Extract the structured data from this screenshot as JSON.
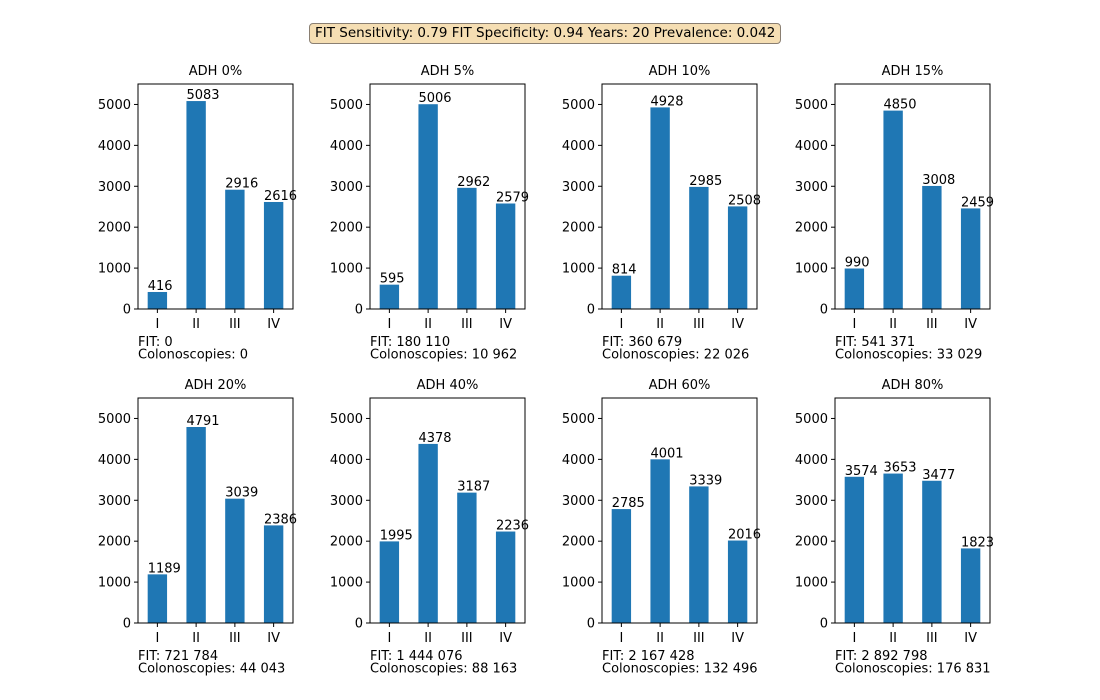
{
  "header": {
    "summary": "FIT Sensitivity: 0.79 FIT Specificity: 0.94 Years: 20 Prevalence: 0.042"
  },
  "colors": {
    "bar": "#1f77b4",
    "axis": "#000000",
    "summary_box_fill": "#f5deb3",
    "summary_box_border": "#8a7f72"
  },
  "chart_data": [
    {
      "type": "bar",
      "title": "ADH 0%",
      "categories": [
        "I",
        "II",
        "III",
        "IV"
      ],
      "values": [
        416,
        5083,
        2916,
        2616
      ],
      "ylim": [
        0,
        5500
      ],
      "yticks": [
        0,
        1000,
        2000,
        3000,
        4000,
        5000
      ],
      "footer_lines": [
        "FIT: 0",
        "Colonoscopies: 0"
      ]
    },
    {
      "type": "bar",
      "title": "ADH 5%",
      "categories": [
        "I",
        "II",
        "III",
        "IV"
      ],
      "values": [
        595,
        5006,
        2962,
        2579
      ],
      "ylim": [
        0,
        5500
      ],
      "yticks": [
        0,
        1000,
        2000,
        3000,
        4000,
        5000
      ],
      "footer_lines": [
        "FIT: 180 110",
        "Colonoscopies: 10 962"
      ]
    },
    {
      "type": "bar",
      "title": "ADH 10%",
      "categories": [
        "I",
        "II",
        "III",
        "IV"
      ],
      "values": [
        814,
        4928,
        2985,
        2508
      ],
      "ylim": [
        0,
        5500
      ],
      "yticks": [
        0,
        1000,
        2000,
        3000,
        4000,
        5000
      ],
      "footer_lines": [
        "FIT: 360 679",
        "Colonoscopies: 22 026"
      ]
    },
    {
      "type": "bar",
      "title": "ADH 15%",
      "categories": [
        "I",
        "II",
        "III",
        "IV"
      ],
      "values": [
        990,
        4850,
        3008,
        2459
      ],
      "ylim": [
        0,
        5500
      ],
      "yticks": [
        0,
        1000,
        2000,
        3000,
        4000,
        5000
      ],
      "footer_lines": [
        "FIT: 541 371",
        "Colonoscopies: 33 029"
      ]
    },
    {
      "type": "bar",
      "title": "ADH 20%",
      "categories": [
        "I",
        "II",
        "III",
        "IV"
      ],
      "values": [
        1189,
        4791,
        3039,
        2386
      ],
      "ylim": [
        0,
        5500
      ],
      "yticks": [
        0,
        1000,
        2000,
        3000,
        4000,
        5000
      ],
      "footer_lines": [
        "FIT: 721 784",
        "Colonoscopies: 44 043"
      ]
    },
    {
      "type": "bar",
      "title": "ADH 40%",
      "categories": [
        "I",
        "II",
        "III",
        "IV"
      ],
      "values": [
        1995,
        4378,
        3187,
        2236
      ],
      "ylim": [
        0,
        5500
      ],
      "yticks": [
        0,
        1000,
        2000,
        3000,
        4000,
        5000
      ],
      "footer_lines": [
        "FIT: 1 444 076",
        "Colonoscopies: 88 163"
      ]
    },
    {
      "type": "bar",
      "title": "ADH 60%",
      "categories": [
        "I",
        "II",
        "III",
        "IV"
      ],
      "values": [
        2785,
        4001,
        3339,
        2016
      ],
      "ylim": [
        0,
        5500
      ],
      "yticks": [
        0,
        1000,
        2000,
        3000,
        4000,
        5000
      ],
      "footer_lines": [
        "FIT: 2 167 428",
        "Colonoscopies: 132 496"
      ]
    },
    {
      "type": "bar",
      "title": "ADH 80%",
      "categories": [
        "I",
        "II",
        "III",
        "IV"
      ],
      "values": [
        3574,
        3653,
        3477,
        1823
      ],
      "ylim": [
        0,
        5500
      ],
      "yticks": [
        0,
        1000,
        2000,
        3000,
        4000,
        5000
      ],
      "footer_lines": [
        "FIT: 2 892 798",
        "Colonoscopies: 176 831"
      ]
    }
  ]
}
